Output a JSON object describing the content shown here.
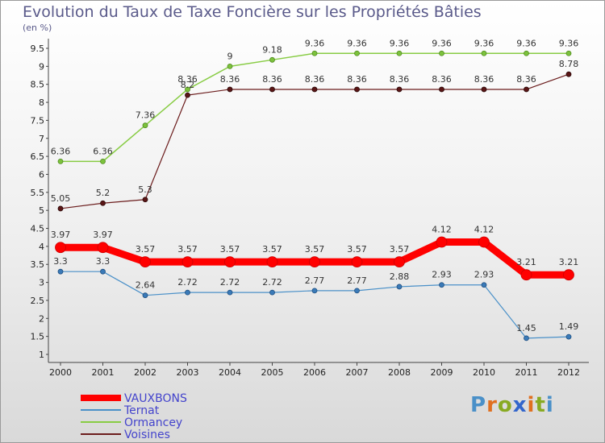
{
  "chart_data": {
    "type": "line",
    "title": "Evolution du Taux de Taxe Foncière sur les Propriétés Bâties",
    "ylabel": "(en %)",
    "xlabel": "",
    "categories": [
      "2000",
      "2001",
      "2002",
      "2003",
      "2004",
      "2005",
      "2006",
      "2007",
      "2008",
      "2009",
      "2010",
      "2011",
      "2012"
    ],
    "ylim": [
      1,
      9.5
    ],
    "yticks": [
      "1",
      "1.5",
      "2",
      "2.5",
      "3",
      "3.5",
      "4",
      "4.5",
      "5",
      "5.5",
      "6",
      "6.5",
      "7",
      "7.5",
      "8",
      "8.5",
      "9",
      "9.5"
    ],
    "series": [
      {
        "name": "VAUXBONS",
        "color": "#ff0000",
        "values": [
          3.97,
          3.97,
          3.57,
          3.57,
          3.57,
          3.57,
          3.57,
          3.57,
          3.57,
          4.12,
          4.12,
          3.21,
          3.21
        ]
      },
      {
        "name": "Ternat",
        "color": "#4a90c8",
        "values": [
          3.3,
          3.3,
          2.64,
          2.72,
          2.72,
          2.72,
          2.77,
          2.77,
          2.88,
          2.93,
          2.93,
          1.45,
          1.49
        ]
      },
      {
        "name": "Ormancey",
        "color": "#88cc44",
        "values": [
          6.36,
          6.36,
          7.36,
          8.36,
          9,
          9.18,
          9.36,
          9.36,
          9.36,
          9.36,
          9.36,
          9.36,
          9.36
        ]
      },
      {
        "name": "Voisines",
        "color": "#6b1c1c",
        "values": [
          5.05,
          5.2,
          5.3,
          8.2,
          8.36,
          8.36,
          8.36,
          8.36,
          8.36,
          8.36,
          8.36,
          8.36,
          8.78
        ]
      }
    ],
    "data_labels": {
      "VAUXBONS": [
        "3.97",
        "3.97",
        "3.57",
        "3.57",
        "3.57",
        "3.57",
        "3.57",
        "3.57",
        "3.57",
        "4.12",
        "4.12",
        "3.21",
        "3.21"
      ],
      "Ternat": [
        "3.3",
        "3.3",
        "2.64",
        "2.72",
        "2.72",
        "2.72",
        "2.77",
        "2.77",
        "2.88",
        "2.93",
        "2.93",
        "1.45",
        "1.49"
      ],
      "Ormancey": [
        "6.36",
        "6.36",
        "7.36",
        "8.36",
        "9",
        "9.18",
        "9.36",
        "9.36",
        "9.36",
        "9.36",
        "9.36",
        "9.36",
        "9.36"
      ],
      "Voisines": [
        "5.05",
        "5.2",
        "5.3",
        "8.2",
        "8.36",
        "8.36",
        "8.36",
        "8.36",
        "8.36",
        "8.36",
        "8.36",
        "8.36",
        "8.78"
      ]
    },
    "legend_position": "bottom-left"
  },
  "logo": {
    "text": "Proxiti",
    "letters": [
      "P",
      "r",
      "o",
      "x",
      "i",
      "t",
      "i"
    ],
    "colors": [
      "#4a90c8",
      "#e07020",
      "#88aa22",
      "#3366cc",
      "#e07020",
      "#88aa22",
      "#4a90c8"
    ]
  }
}
